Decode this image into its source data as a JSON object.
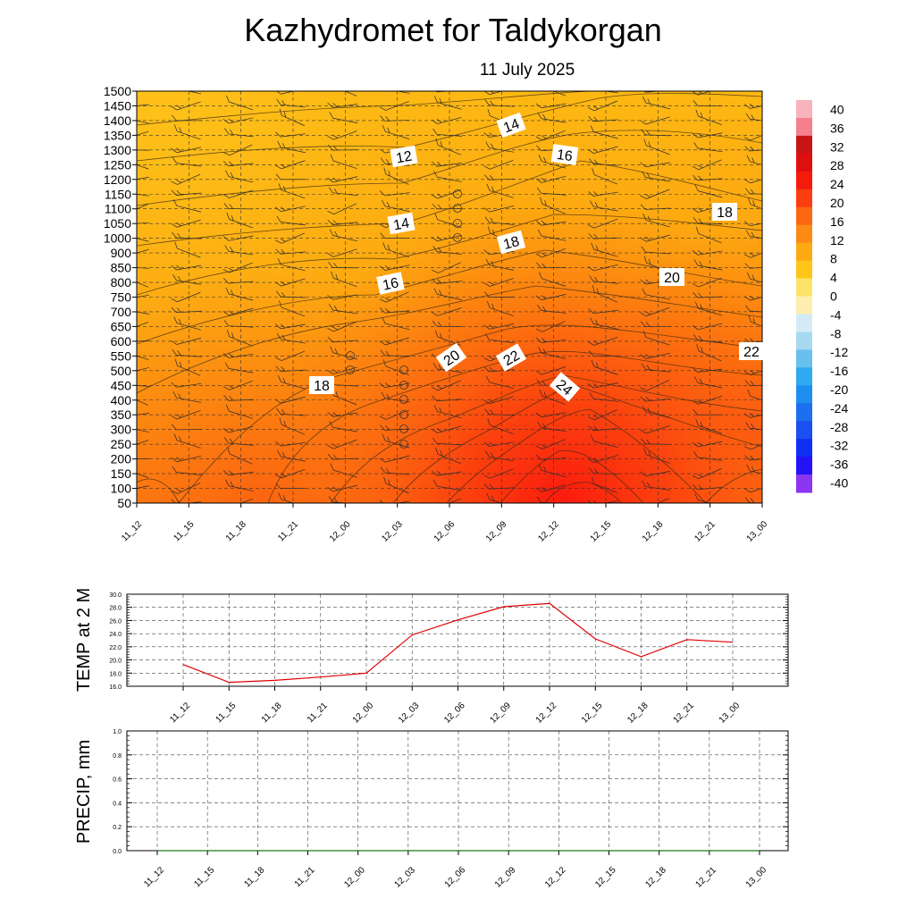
{
  "chart_data": [
    {
      "type": "heatmap",
      "title": "Kazhydromet  for Taldykorgan",
      "subtitle": "11 July 2025",
      "x_ticks": [
        "11_12",
        "11_15",
        "11_18",
        "11_21",
        "12_00",
        "12_03",
        "12_06",
        "12_09",
        "12_12",
        "12_15",
        "12_18",
        "12_21",
        "13_00"
      ],
      "y_ticks": [
        1500,
        1450,
        1400,
        1350,
        1300,
        1250,
        1200,
        1150,
        1100,
        1050,
        1000,
        900,
        850,
        800,
        750,
        700,
        650,
        600,
        550,
        500,
        450,
        400,
        350,
        300,
        250,
        200,
        150,
        100,
        50
      ],
      "colorbar": {
        "labels": [
          40,
          36,
          32,
          28,
          24,
          20,
          16,
          12,
          8,
          4,
          0,
          -4,
          -8,
          -12,
          -16,
          -20,
          -24,
          -28,
          -32,
          -36,
          -40
        ],
        "colors": [
          "#f9b3bc",
          "#f57f8b",
          "#c81414",
          "#de0f0f",
          "#f41b0d",
          "#fb3d0f",
          "#fc6811",
          "#fd8a14",
          "#fda913",
          "#fec619",
          "#fde36a",
          "#feeeb0",
          "#d4ebf7",
          "#a8d9f1",
          "#68c0ee",
          "#2fa9ef",
          "#1e8ff0",
          "#1d6ff0",
          "#1a4ff0",
          "#0f2ff5",
          "#2313f5",
          "#8d36f2"
        ]
      },
      "contour_labels": [
        "12",
        "14",
        "16",
        "14",
        "16",
        "18",
        "18",
        "20",
        "22",
        "24",
        "20",
        "18",
        "22"
      ],
      "grid": true
    },
    {
      "type": "line",
      "ylabel": "TEMP at 2 M",
      "x": [
        "11_12",
        "11_15",
        "11_18",
        "11_21",
        "12_00",
        "12_03",
        "12_06",
        "12_09",
        "12_12",
        "12_15",
        "12_18",
        "12_21",
        "13_00"
      ],
      "y_ticks": [
        "30.0",
        "28.0",
        "26.0",
        "24.0",
        "22.0",
        "20.0",
        "18.0",
        "16.0"
      ],
      "ylim": [
        16.0,
        30.0
      ],
      "series": [
        {
          "values": [
            19.3,
            16.6,
            16.9,
            17.4,
            18.0,
            23.8,
            26.1,
            28.1,
            28.6,
            23.2,
            20.5,
            23.1,
            22.7
          ],
          "color": "#e00000"
        }
      ],
      "grid": true
    },
    {
      "type": "line",
      "ylabel": "PRECIP, mm",
      "x": [
        "11_12",
        "11_15",
        "11_18",
        "11_21",
        "12_00",
        "12_03",
        "12_06",
        "12_09",
        "12_12",
        "12_15",
        "12_18",
        "12_21",
        "13_00"
      ],
      "y_ticks": [
        "1.0",
        "0.8",
        "0.6",
        "0.4",
        "0.2",
        "0.0"
      ],
      "ylim": [
        0.0,
        1.0
      ],
      "series": [
        {
          "values": [
            0,
            0,
            0,
            0,
            0,
            0,
            0,
            0,
            0,
            0,
            0,
            0,
            0
          ],
          "color": "#1a7a1a"
        }
      ],
      "grid": true
    }
  ]
}
